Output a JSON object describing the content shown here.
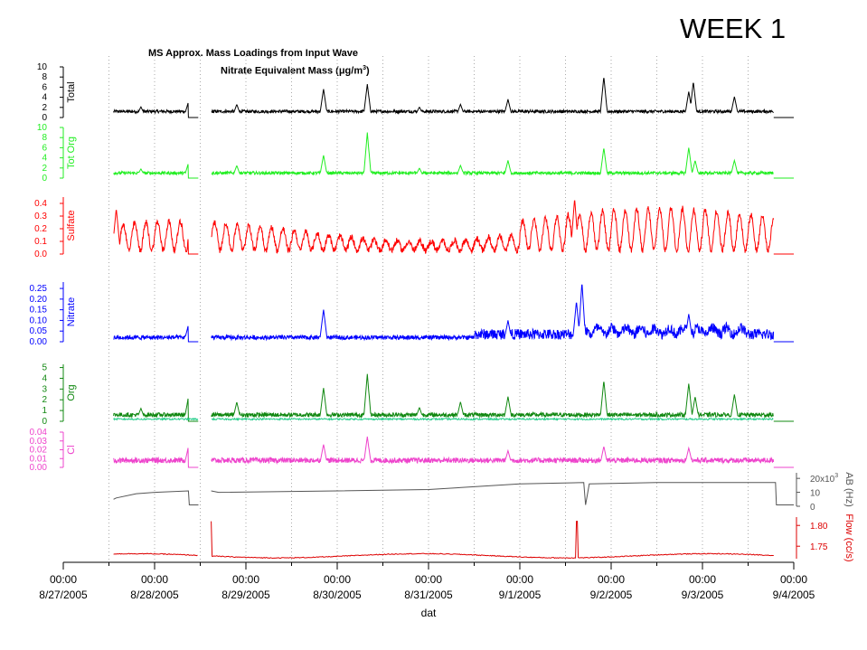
{
  "header": {
    "week_label": "WEEK 1",
    "title": "MS Approx. Mass Loadings from Input Wave",
    "subtitle_prefix": "Nitrate Equivalent Mass (",
    "subtitle_unit": "μg/m",
    "subtitle_sup": "3",
    "subtitle_suffix": ")"
  },
  "colors": {
    "total": "#000000",
    "tot_org": "#22ee22",
    "sulfate": "#ff0000",
    "nitrate": "#0000ff",
    "org": "#118811",
    "org_lower": "#22cc88",
    "cl": "#ee44cc",
    "ab": "#555555",
    "flow": "#dd0000"
  },
  "chart_data": {
    "type": "line",
    "title": "MS Approx. Mass Loadings from Input Wave",
    "subtitle": "Nitrate Equivalent Mass (μg/m3)",
    "xlabel": "dat",
    "x_range": [
      "2005-08-27 00:00",
      "2005-09-04 00:00"
    ],
    "x_ticks": [
      {
        "time": "00:00",
        "date": "8/27/2005"
      },
      {
        "time": "00:00",
        "date": "8/28/2005"
      },
      {
        "time": "00:00",
        "date": "8/29/2005"
      },
      {
        "time": "00:00",
        "date": "8/30/2005"
      },
      {
        "time": "00:00",
        "date": "8/31/2005"
      },
      {
        "time": "00:00",
        "date": "9/1/2005"
      },
      {
        "time": "00:00",
        "date": "9/2/2005"
      },
      {
        "time": "00:00",
        "date": "9/3/2005"
      },
      {
        "time": "00:00",
        "date": "9/4/2005"
      }
    ],
    "gap_days": [
      1.48,
      1.62
    ],
    "data_range_days": [
      0.55,
      7.78
    ],
    "panels": [
      {
        "key": "total",
        "label": "Total",
        "axis_side": "left",
        "ylim": [
          0,
          10
        ],
        "ticks": [
          "0",
          "2",
          "4",
          "6",
          "8",
          "10"
        ],
        "baseline": 1.2,
        "noise": 0.3,
        "spikes": [
          [
            0.85,
            1.5
          ],
          [
            1.37,
            2.5
          ],
          [
            1.9,
            2.0
          ],
          [
            2.85,
            5.0
          ],
          [
            3.33,
            6.0
          ],
          [
            3.9,
            1.5
          ],
          [
            4.35,
            2.0
          ],
          [
            4.87,
            3.0
          ],
          [
            5.92,
            7.5
          ],
          [
            6.9,
            6.5
          ],
          [
            6.85,
            4.5
          ],
          [
            7.35,
            3.5
          ]
        ]
      },
      {
        "key": "tot_org",
        "label": "Tot Org",
        "axis_side": "left",
        "ylim": [
          0,
          10
        ],
        "ticks": [
          "0",
          "2",
          "4",
          "6",
          "8",
          "10"
        ],
        "baseline": 1.0,
        "noise": 0.3,
        "spikes": [
          [
            0.85,
            1.3
          ],
          [
            1.37,
            2.5
          ],
          [
            1.9,
            2.0
          ],
          [
            2.85,
            4.0
          ],
          [
            3.33,
            8.5
          ],
          [
            3.9,
            1.5
          ],
          [
            4.35,
            2.0
          ],
          [
            4.87,
            3.0
          ],
          [
            5.92,
            5.5
          ],
          [
            6.85,
            5.5
          ],
          [
            6.92,
            3.0
          ],
          [
            7.35,
            3.0
          ]
        ]
      },
      {
        "key": "sulfate",
        "label": "Sulfate",
        "axis_side": "left",
        "ylim": [
          0,
          0.45
        ],
        "ticks": [
          "0.0",
          "0.1",
          "0.2",
          "0.3",
          "0.4"
        ],
        "baseline": 0.12,
        "noise": 0.05,
        "spikes": [
          [
            0.58,
            0.3
          ],
          [
            5.6,
            0.38
          ]
        ]
      },
      {
        "key": "nitrate",
        "label": "Nitrate",
        "axis_side": "left",
        "ylim": [
          0,
          0.28
        ],
        "ticks": [
          "0.00",
          "0.05",
          "0.10",
          "0.15",
          "0.20",
          "0.25"
        ],
        "baseline": 0.02,
        "noise": 0.012,
        "spikes": [
          [
            1.37,
            0.07
          ],
          [
            2.85,
            0.14
          ],
          [
            4.87,
            0.09
          ],
          [
            5.68,
            0.27
          ],
          [
            5.62,
            0.18
          ],
          [
            6.85,
            0.12
          ]
        ]
      },
      {
        "key": "org",
        "label": "Org",
        "axis_side": "left",
        "ylim": [
          0,
          5.3
        ],
        "ticks": [
          "0",
          "1",
          "2",
          "3",
          "4",
          "5"
        ],
        "baseline": 0.6,
        "noise": 0.2,
        "spikes": [
          [
            0.85,
            0.9
          ],
          [
            1.37,
            2.0
          ],
          [
            1.9,
            1.5
          ],
          [
            2.85,
            2.8
          ],
          [
            3.33,
            4.1
          ],
          [
            3.9,
            1.0
          ],
          [
            4.35,
            1.5
          ],
          [
            4.87,
            2.0
          ],
          [
            5.92,
            3.5
          ],
          [
            6.85,
            3.2
          ],
          [
            6.92,
            2.0
          ],
          [
            7.35,
            2.2
          ]
        ]
      },
      {
        "key": "cl",
        "label": "Cl",
        "axis_side": "left",
        "ylim": [
          0,
          0.04
        ],
        "ticks": [
          "0.00",
          "0.01",
          "0.02",
          "0.03",
          "0.04"
        ],
        "baseline": 0.008,
        "noise": 0.003,
        "spikes": [
          [
            1.37,
            0.02
          ],
          [
            2.85,
            0.022
          ],
          [
            3.33,
            0.031
          ],
          [
            4.87,
            0.015
          ],
          [
            5.92,
            0.02
          ],
          [
            6.85,
            0.018
          ]
        ]
      },
      {
        "key": "ab",
        "label": "AB (Hz)",
        "axis_side": "right",
        "ylim": [
          0,
          24000
        ],
        "ticks": [
          "0",
          "10",
          "20x10"
        ],
        "tick_sup": "3"
      },
      {
        "key": "flow",
        "label": "Flow (cc/s)",
        "axis_side": "right",
        "ylim": [
          1.72,
          1.82
        ],
        "ticks": [
          "1.75",
          "1.80"
        ]
      }
    ]
  }
}
